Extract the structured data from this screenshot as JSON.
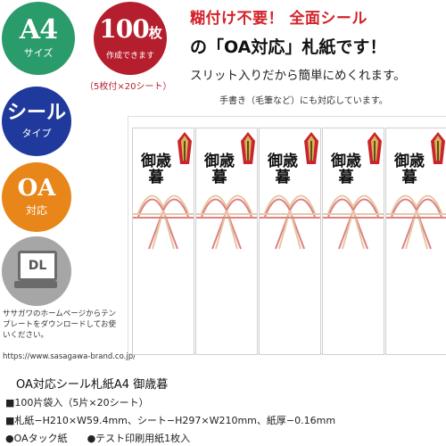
{
  "badges": {
    "a4": {
      "title": "A4",
      "subtitle": "サイズ"
    },
    "count": {
      "number": "100",
      "unit": "枚",
      "subtitle": "作成できます",
      "note": "（5枚付×20シート）"
    },
    "seal": {
      "title": "シール",
      "subtitle": "タイプ"
    },
    "oa": {
      "title": "OA",
      "subtitle": "対応"
    },
    "download": {
      "title": "DL",
      "note": "ササガワのホームページからテンプレートをダウンロードしてお使いください。",
      "url": "https://www.sasagawa-brand.co.jp/"
    }
  },
  "headline": {
    "line1": "糊付け不要！ 全面シール",
    "line2": "の「OA対応」札紙です！",
    "line3": "スリット入りだから簡単にめくれます。",
    "line4": "手書き（毛筆など）にも対応しています。"
  },
  "cards": {
    "text": "御歳暮",
    "count": 5
  },
  "colors": {
    "green": "#2a9b6a",
    "red": "#b51e2d",
    "blue": "#1f3a9c",
    "orange": "#e8861a",
    "gray": "#a6a6a6"
  },
  "product": {
    "title": "OA対応シール札紙A4 御歳暮",
    "specs": [
      "■100片袋入（5片×20シート）",
      "■札紙−H210×W59.4mm、シート−H297×W210mm、紙厚−0.16mm",
      "●OAタック紙　　●テスト印刷用紙1枚入"
    ]
  }
}
